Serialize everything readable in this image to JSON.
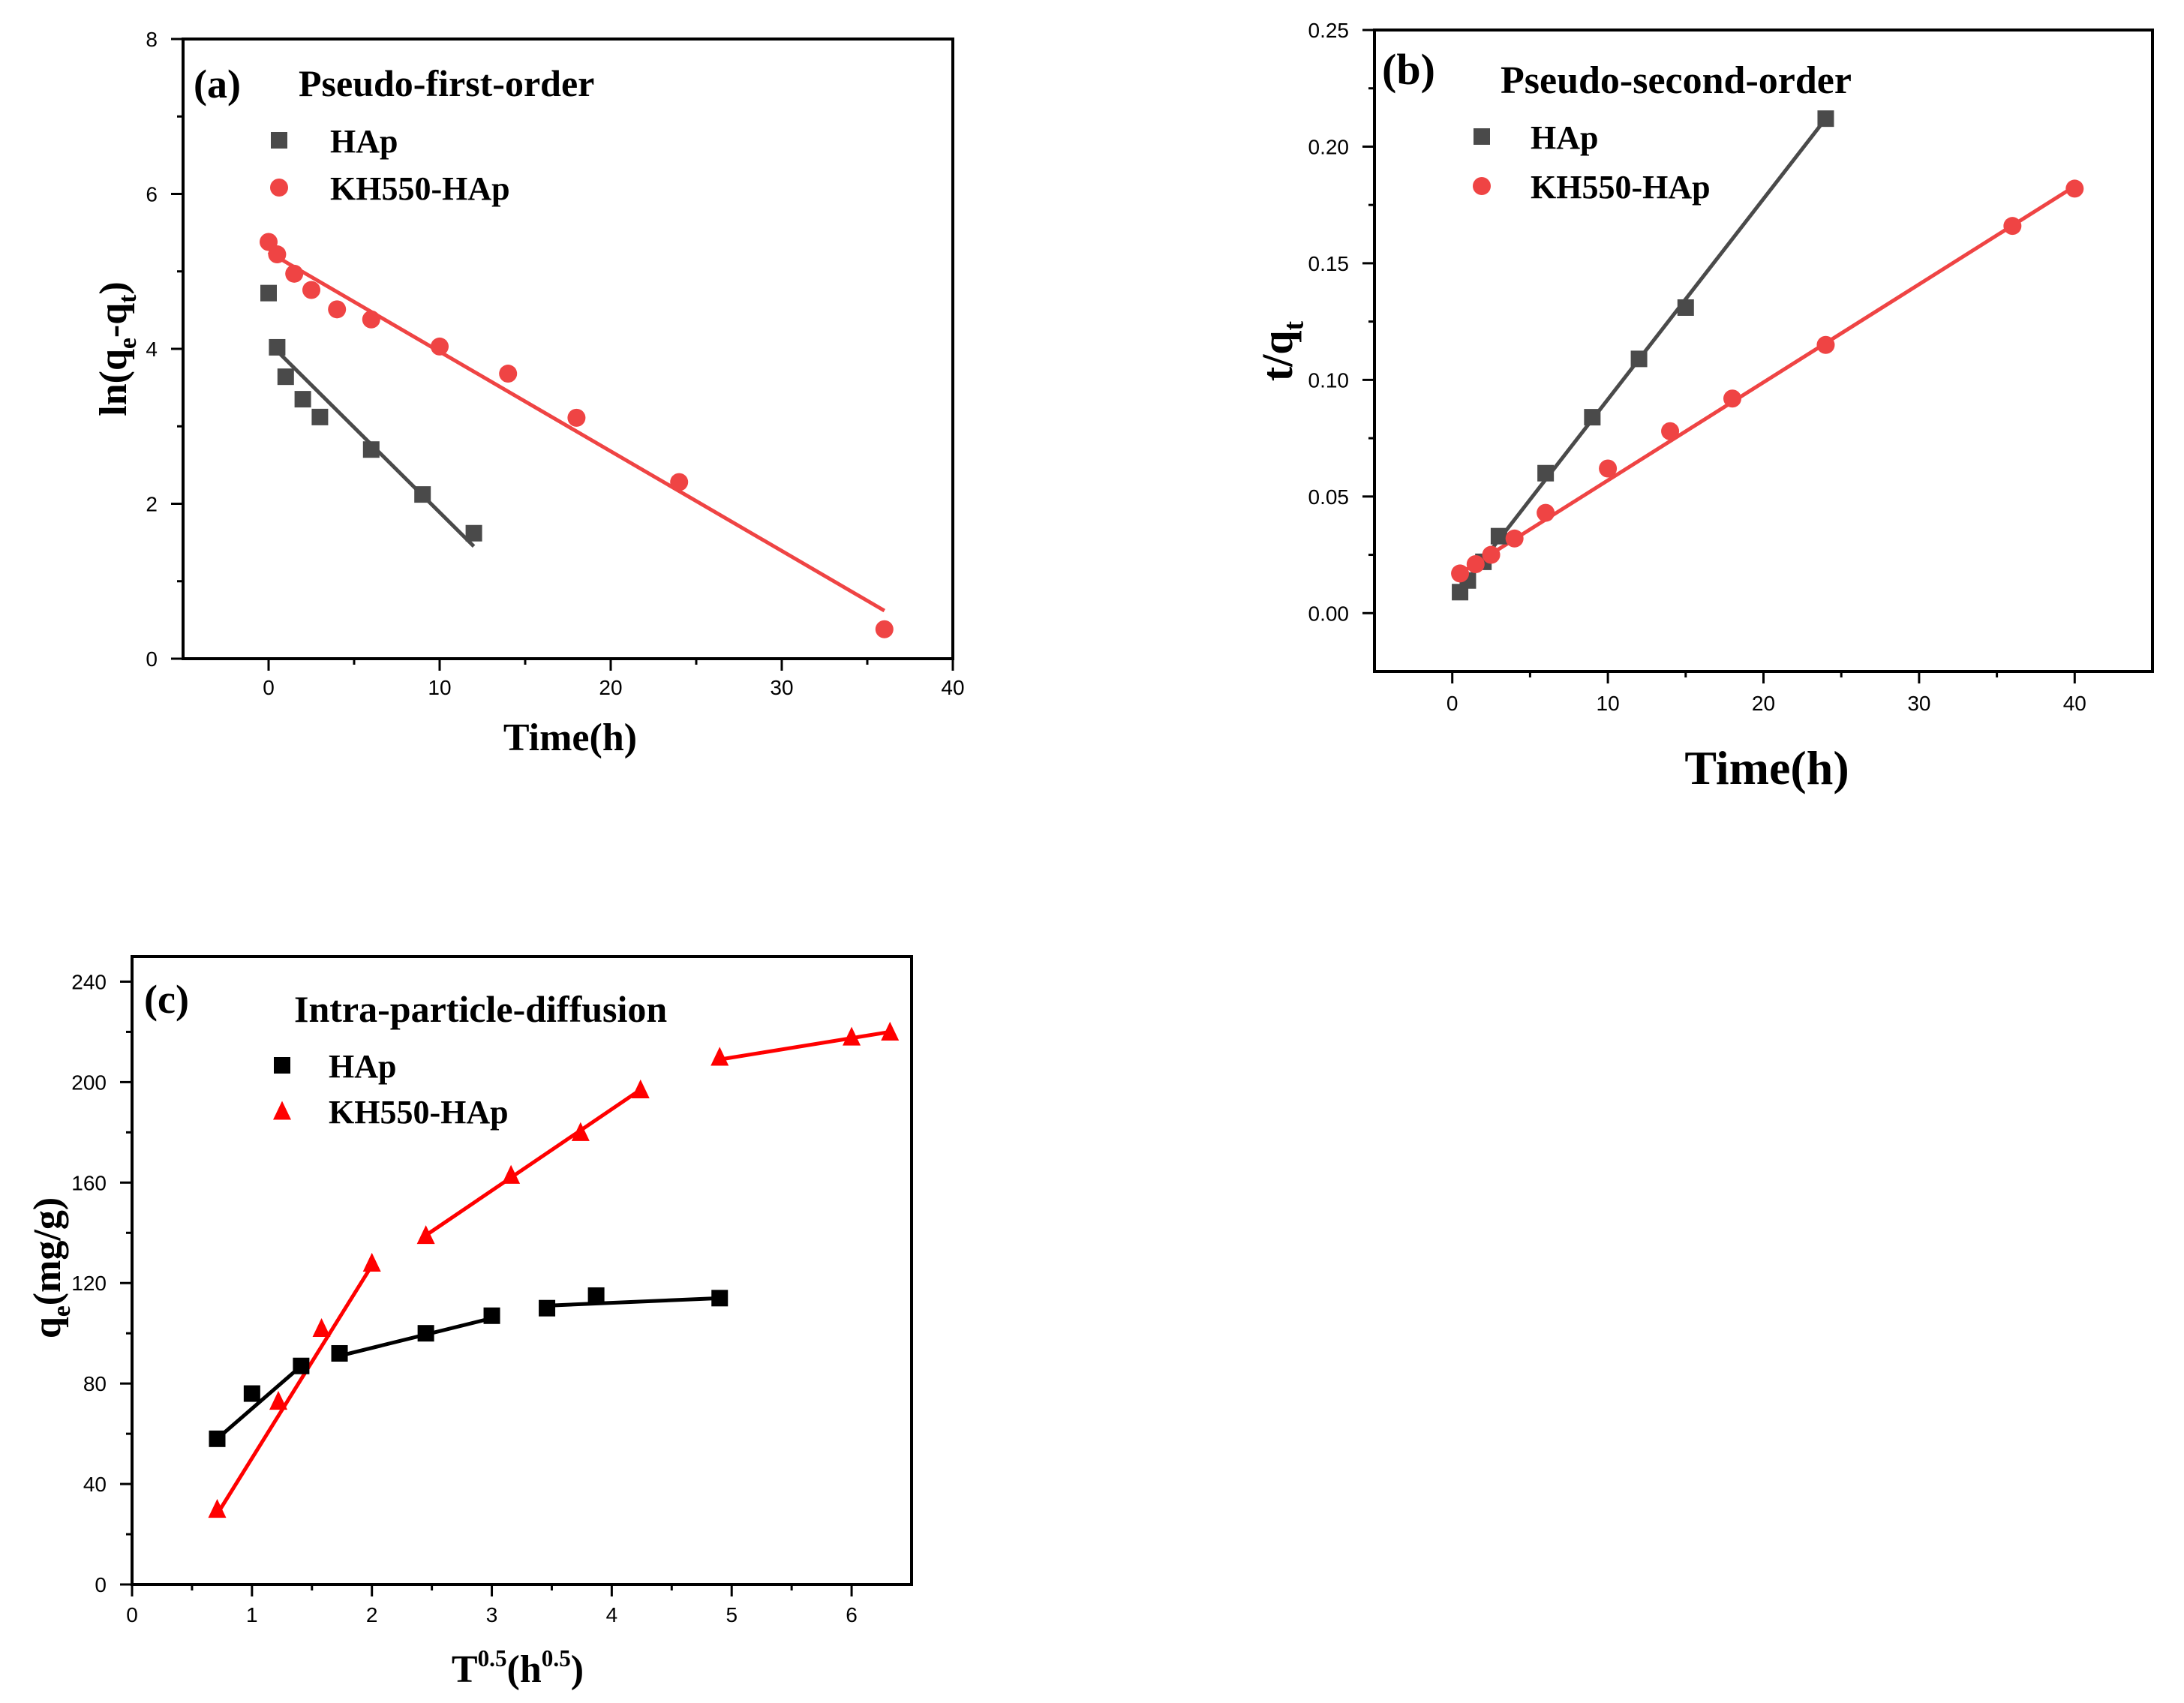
{
  "chart_data": [
    {
      "type": "scatter",
      "panel": "(a)",
      "title": "Pseudo-first-order",
      "xlabel": "Time(h)",
      "ylabel_main": "ln(q",
      "ylabel_sub1": "e",
      "ylabel_mid": "-q",
      "ylabel_sub2": "t",
      "ylabel_end": ")",
      "xlim": [
        -5,
        40
      ],
      "ylim": [
        0,
        8
      ],
      "xticks": [
        0,
        10,
        20,
        30,
        40
      ],
      "yticks": [
        0,
        2,
        4,
        6,
        8
      ],
      "series": [
        {
          "name": "HAp",
          "marker": "square",
          "color": "#4a4a4a",
          "x": [
            0,
            0.5,
            1,
            2,
            3,
            6,
            9,
            12
          ],
          "y": [
            4.72,
            4.02,
            3.64,
            3.35,
            3.12,
            2.7,
            2.12,
            1.62
          ],
          "fits": [
            {
              "x": [
                0.1,
                12
              ],
              "y": [
                4.06,
                1.45
              ]
            }
          ]
        },
        {
          "name": "KH550-HAp",
          "marker": "circle",
          "color": "#ef4444",
          "x": [
            0,
            0.5,
            1.5,
            2.5,
            4,
            6,
            10,
            14,
            18,
            24,
            36
          ],
          "y": [
            5.38,
            5.22,
            4.97,
            4.76,
            4.51,
            4.38,
            4.03,
            3.68,
            3.11,
            2.28,
            0.38
          ],
          "fits": [
            {
              "x": [
                0,
                36
              ],
              "y": [
                5.25,
                0.62
              ]
            }
          ]
        }
      ]
    },
    {
      "type": "scatter",
      "panel": "(b)",
      "title": "Pseudo-second-order",
      "xlabel": "Time(h)",
      "ylabel_main": "t/q",
      "ylabel_sub1": "t",
      "xlim": [
        -5,
        45
      ],
      "ylim": [
        -0.025,
        0.25
      ],
      "xticks": [
        0,
        10,
        20,
        30,
        40
      ],
      "yticks": [
        0.0,
        0.05,
        0.1,
        0.15,
        0.2,
        0.25
      ],
      "ytick_labels": [
        "0.00",
        "0.05",
        "0.10",
        "0.15",
        "0.20",
        "0.25"
      ],
      "series": [
        {
          "name": "HAp",
          "marker": "square",
          "color": "#4a4a4a",
          "x": [
            0.5,
            1,
            2,
            3,
            6,
            9,
            12,
            15,
            24
          ],
          "y": [
            0.009,
            0.014,
            0.022,
            0.033,
            0.06,
            0.084,
            0.109,
            0.131,
            0.212
          ],
          "fits": [
            {
              "x": [
                0.5,
                24
              ],
              "y": [
                0.01,
                0.212
              ]
            }
          ]
        },
        {
          "name": "KH550-HAp",
          "marker": "circle",
          "color": "#ef4444",
          "x": [
            0.5,
            1.5,
            2.5,
            4,
            6,
            10,
            14,
            18,
            24,
            36,
            40
          ],
          "y": [
            0.017,
            0.021,
            0.025,
            0.032,
            0.043,
            0.062,
            0.078,
            0.092,
            0.115,
            0.166,
            0.182
          ],
          "fits": [
            {
              "x": [
                0.5,
                40
              ],
              "y": [
                0.017,
                0.183
              ]
            }
          ]
        }
      ]
    },
    {
      "type": "scatter",
      "panel": "(c)",
      "title": "Intra-particle-diffusion",
      "xlabel_main": "T",
      "xlabel_sup1": "0.5",
      "xlabel_mid": "(h",
      "xlabel_sup2": "0.5",
      "xlabel_end": ")",
      "ylabel_main": "q",
      "ylabel_sub1": "e",
      "ylabel_end": "(mg/g)",
      "xlim": [
        0,
        6.5
      ],
      "ylim": [
        0,
        250
      ],
      "xticks": [
        0,
        1,
        2,
        3,
        4,
        5,
        6
      ],
      "yticks": [
        0,
        40,
        80,
        120,
        160,
        200,
        240
      ],
      "series": [
        {
          "name": "HAp",
          "marker": "square",
          "color": "#000000",
          "x": [
            0.71,
            1.0,
            1.41,
            1.73,
            2.45,
            3.0,
            3.46,
            3.87,
            4.9
          ],
          "y": [
            58,
            76,
            87,
            92,
            100,
            107,
            110,
            115,
            114
          ],
          "fits": [
            {
              "x": [
                0.71,
                1.41
              ],
              "y": [
                58,
                87
              ]
            },
            {
              "x": [
                1.73,
                3.0
              ],
              "y": [
                91,
                106
              ]
            },
            {
              "x": [
                3.46,
                4.9
              ],
              "y": [
                111,
                114
              ]
            }
          ]
        },
        {
          "name": "KH550-HAp",
          "marker": "triangle",
          "color": "#ff0000",
          "x": [
            0.71,
            1.22,
            1.58,
            2.0,
            2.45,
            3.16,
            3.74,
            4.24,
            4.9,
            6.0,
            6.32
          ],
          "y": [
            30,
            73,
            102,
            128,
            139,
            163,
            180,
            197,
            210,
            218,
            220
          ],
          "fits": [
            {
              "x": [
                0.71,
                2.0
              ],
              "y": [
                28,
                127
              ]
            },
            {
              "x": [
                2.45,
                4.24
              ],
              "y": [
                139,
                197
              ]
            },
            {
              "x": [
                4.9,
                6.32
              ],
              "y": [
                209,
                220
              ]
            }
          ]
        }
      ]
    }
  ]
}
